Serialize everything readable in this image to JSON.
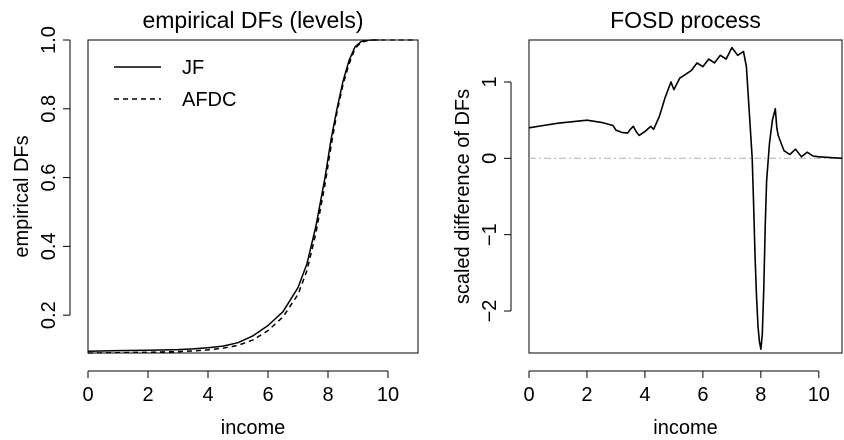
{
  "chart_data": [
    {
      "type": "line",
      "title": "empirical DFs (levels)",
      "xlabel": "income",
      "ylabel": "empirical DFs",
      "xlim": [
        0,
        11
      ],
      "ylim": [
        0.09,
        1.0
      ],
      "xticks": [
        0,
        2,
        4,
        6,
        8,
        10
      ],
      "yticks": [
        0.2,
        0.4,
        0.6,
        0.8,
        1.0
      ],
      "ytick_labels": [
        "0.2",
        "0.4",
        "0.6",
        "0.8",
        "1.0"
      ],
      "y_tick_labels_rotated": true,
      "legend_position": "top-left",
      "series": [
        {
          "name": "JF",
          "style": "solid",
          "x": [
            0,
            1,
            2,
            3,
            3.5,
            4,
            4.5,
            5,
            5.5,
            6,
            6.5,
            7,
            7.3,
            7.6,
            7.9,
            8.1,
            8.3,
            8.5,
            8.7,
            8.9,
            9.1,
            9.3,
            9.5,
            9.7
          ],
          "y": [
            0.095,
            0.097,
            0.098,
            0.1,
            0.102,
            0.105,
            0.11,
            0.12,
            0.14,
            0.17,
            0.21,
            0.28,
            0.35,
            0.46,
            0.6,
            0.71,
            0.8,
            0.88,
            0.94,
            0.98,
            0.995,
            0.999,
            1.0,
            1.0
          ]
        },
        {
          "name": "AFDC",
          "style": "dashed",
          "x": [
            0,
            1,
            2,
            3,
            3.5,
            4,
            4.5,
            5,
            5.5,
            6,
            6.5,
            7,
            7.3,
            7.6,
            7.9,
            8.1,
            8.3,
            8.5,
            8.7,
            8.9,
            9.1,
            9.3,
            9.5,
            9.7,
            10,
            10.5,
            10.9
          ],
          "y": [
            0.09,
            0.091,
            0.092,
            0.094,
            0.096,
            0.099,
            0.104,
            0.112,
            0.128,
            0.155,
            0.195,
            0.26,
            0.33,
            0.44,
            0.58,
            0.69,
            0.79,
            0.87,
            0.93,
            0.975,
            0.993,
            0.998,
            1.0,
            1.0,
            1.0,
            1.0,
            1.0
          ]
        }
      ]
    },
    {
      "type": "line",
      "title": "FOSD process",
      "xlabel": "income",
      "ylabel": "scaled difference of DFs",
      "xlim": [
        0,
        10.8
      ],
      "ylim": [
        -2.55,
        1.55
      ],
      "xticks": [
        0,
        2,
        4,
        6,
        8,
        10
      ],
      "yticks": [
        -2,
        -1,
        0,
        1
      ],
      "ytick_labels": [
        "−2",
        "−1",
        "0",
        "1"
      ],
      "y_tick_labels_rotated": true,
      "reference_line": {
        "y": 0,
        "style": "dash-dot",
        "color": "#bbbbbb"
      },
      "series": [
        {
          "style": "solid",
          "x": [
            0,
            0.5,
            1,
            1.5,
            2,
            2.5,
            2.9,
            3.0,
            3.2,
            3.4,
            3.5,
            3.6,
            3.7,
            3.8,
            4.0,
            4.2,
            4.3,
            4.5,
            4.7,
            4.9,
            5.0,
            5.2,
            5.4,
            5.6,
            5.8,
            6.0,
            6.2,
            6.4,
            6.6,
            6.8,
            7.0,
            7.2,
            7.4,
            7.5,
            7.6,
            7.7,
            7.75,
            7.8,
            7.85,
            7.9,
            7.95,
            8.0,
            8.05,
            8.1,
            8.15,
            8.2,
            8.3,
            8.4,
            8.5,
            8.55,
            8.6,
            8.7,
            8.8,
            9.0,
            9.2,
            9.4,
            9.6,
            9.8,
            10.0,
            10.4,
            10.8
          ],
          "y": [
            0.4,
            0.43,
            0.46,
            0.48,
            0.5,
            0.47,
            0.43,
            0.37,
            0.34,
            0.33,
            0.38,
            0.42,
            0.35,
            0.3,
            0.35,
            0.42,
            0.38,
            0.55,
            0.8,
            1.0,
            0.9,
            1.05,
            1.1,
            1.15,
            1.25,
            1.2,
            1.3,
            1.25,
            1.35,
            1.3,
            1.45,
            1.35,
            1.4,
            1.2,
            0.6,
            0.0,
            -0.6,
            -1.3,
            -1.8,
            -2.2,
            -2.4,
            -2.5,
            -2.3,
            -1.7,
            -0.9,
            -0.3,
            0.2,
            0.5,
            0.65,
            0.4,
            0.3,
            0.2,
            0.1,
            0.05,
            0.12,
            0.02,
            0.08,
            0.03,
            0.02,
            0.01,
            0.0
          ]
        }
      ]
    }
  ]
}
